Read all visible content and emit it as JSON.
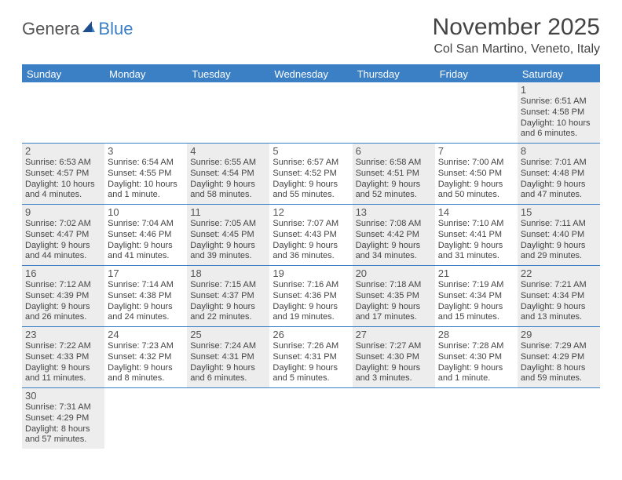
{
  "logo": {
    "general": "Genera",
    "blue": "Blue"
  },
  "title": "November 2025",
  "location": "Col San Martino, Veneto, Italy",
  "colors": {
    "header_bg": "#3b7fc4",
    "alt_bg": "#ededed",
    "text": "#444444"
  },
  "day_names": [
    "Sunday",
    "Monday",
    "Tuesday",
    "Wednesday",
    "Thursday",
    "Friday",
    "Saturday"
  ],
  "weeks": [
    [
      null,
      null,
      null,
      null,
      null,
      null,
      {
        "d": "1",
        "sr": "Sunrise: 6:51 AM",
        "ss": "Sunset: 4:58 PM",
        "dl1": "Daylight: 10 hours",
        "dl2": "and 6 minutes."
      }
    ],
    [
      {
        "d": "2",
        "sr": "Sunrise: 6:53 AM",
        "ss": "Sunset: 4:57 PM",
        "dl1": "Daylight: 10 hours",
        "dl2": "and 4 minutes."
      },
      {
        "d": "3",
        "sr": "Sunrise: 6:54 AM",
        "ss": "Sunset: 4:55 PM",
        "dl1": "Daylight: 10 hours",
        "dl2": "and 1 minute."
      },
      {
        "d": "4",
        "sr": "Sunrise: 6:55 AM",
        "ss": "Sunset: 4:54 PM",
        "dl1": "Daylight: 9 hours",
        "dl2": "and 58 minutes."
      },
      {
        "d": "5",
        "sr": "Sunrise: 6:57 AM",
        "ss": "Sunset: 4:52 PM",
        "dl1": "Daylight: 9 hours",
        "dl2": "and 55 minutes."
      },
      {
        "d": "6",
        "sr": "Sunrise: 6:58 AM",
        "ss": "Sunset: 4:51 PM",
        "dl1": "Daylight: 9 hours",
        "dl2": "and 52 minutes."
      },
      {
        "d": "7",
        "sr": "Sunrise: 7:00 AM",
        "ss": "Sunset: 4:50 PM",
        "dl1": "Daylight: 9 hours",
        "dl2": "and 50 minutes."
      },
      {
        "d": "8",
        "sr": "Sunrise: 7:01 AM",
        "ss": "Sunset: 4:48 PM",
        "dl1": "Daylight: 9 hours",
        "dl2": "and 47 minutes."
      }
    ],
    [
      {
        "d": "9",
        "sr": "Sunrise: 7:02 AM",
        "ss": "Sunset: 4:47 PM",
        "dl1": "Daylight: 9 hours",
        "dl2": "and 44 minutes."
      },
      {
        "d": "10",
        "sr": "Sunrise: 7:04 AM",
        "ss": "Sunset: 4:46 PM",
        "dl1": "Daylight: 9 hours",
        "dl2": "and 41 minutes."
      },
      {
        "d": "11",
        "sr": "Sunrise: 7:05 AM",
        "ss": "Sunset: 4:45 PM",
        "dl1": "Daylight: 9 hours",
        "dl2": "and 39 minutes."
      },
      {
        "d": "12",
        "sr": "Sunrise: 7:07 AM",
        "ss": "Sunset: 4:43 PM",
        "dl1": "Daylight: 9 hours",
        "dl2": "and 36 minutes."
      },
      {
        "d": "13",
        "sr": "Sunrise: 7:08 AM",
        "ss": "Sunset: 4:42 PM",
        "dl1": "Daylight: 9 hours",
        "dl2": "and 34 minutes."
      },
      {
        "d": "14",
        "sr": "Sunrise: 7:10 AM",
        "ss": "Sunset: 4:41 PM",
        "dl1": "Daylight: 9 hours",
        "dl2": "and 31 minutes."
      },
      {
        "d": "15",
        "sr": "Sunrise: 7:11 AM",
        "ss": "Sunset: 4:40 PM",
        "dl1": "Daylight: 9 hours",
        "dl2": "and 29 minutes."
      }
    ],
    [
      {
        "d": "16",
        "sr": "Sunrise: 7:12 AM",
        "ss": "Sunset: 4:39 PM",
        "dl1": "Daylight: 9 hours",
        "dl2": "and 26 minutes."
      },
      {
        "d": "17",
        "sr": "Sunrise: 7:14 AM",
        "ss": "Sunset: 4:38 PM",
        "dl1": "Daylight: 9 hours",
        "dl2": "and 24 minutes."
      },
      {
        "d": "18",
        "sr": "Sunrise: 7:15 AM",
        "ss": "Sunset: 4:37 PM",
        "dl1": "Daylight: 9 hours",
        "dl2": "and 22 minutes."
      },
      {
        "d": "19",
        "sr": "Sunrise: 7:16 AM",
        "ss": "Sunset: 4:36 PM",
        "dl1": "Daylight: 9 hours",
        "dl2": "and 19 minutes."
      },
      {
        "d": "20",
        "sr": "Sunrise: 7:18 AM",
        "ss": "Sunset: 4:35 PM",
        "dl1": "Daylight: 9 hours",
        "dl2": "and 17 minutes."
      },
      {
        "d": "21",
        "sr": "Sunrise: 7:19 AM",
        "ss": "Sunset: 4:34 PM",
        "dl1": "Daylight: 9 hours",
        "dl2": "and 15 minutes."
      },
      {
        "d": "22",
        "sr": "Sunrise: 7:21 AM",
        "ss": "Sunset: 4:34 PM",
        "dl1": "Daylight: 9 hours",
        "dl2": "and 13 minutes."
      }
    ],
    [
      {
        "d": "23",
        "sr": "Sunrise: 7:22 AM",
        "ss": "Sunset: 4:33 PM",
        "dl1": "Daylight: 9 hours",
        "dl2": "and 11 minutes."
      },
      {
        "d": "24",
        "sr": "Sunrise: 7:23 AM",
        "ss": "Sunset: 4:32 PM",
        "dl1": "Daylight: 9 hours",
        "dl2": "and 8 minutes."
      },
      {
        "d": "25",
        "sr": "Sunrise: 7:24 AM",
        "ss": "Sunset: 4:31 PM",
        "dl1": "Daylight: 9 hours",
        "dl2": "and 6 minutes."
      },
      {
        "d": "26",
        "sr": "Sunrise: 7:26 AM",
        "ss": "Sunset: 4:31 PM",
        "dl1": "Daylight: 9 hours",
        "dl2": "and 5 minutes."
      },
      {
        "d": "27",
        "sr": "Sunrise: 7:27 AM",
        "ss": "Sunset: 4:30 PM",
        "dl1": "Daylight: 9 hours",
        "dl2": "and 3 minutes."
      },
      {
        "d": "28",
        "sr": "Sunrise: 7:28 AM",
        "ss": "Sunset: 4:30 PM",
        "dl1": "Daylight: 9 hours",
        "dl2": "and 1 minute."
      },
      {
        "d": "29",
        "sr": "Sunrise: 7:29 AM",
        "ss": "Sunset: 4:29 PM",
        "dl1": "Daylight: 8 hours",
        "dl2": "and 59 minutes."
      }
    ],
    [
      {
        "d": "30",
        "sr": "Sunrise: 7:31 AM",
        "ss": "Sunset: 4:29 PM",
        "dl1": "Daylight: 8 hours",
        "dl2": "and 57 minutes."
      },
      null,
      null,
      null,
      null,
      null,
      null
    ]
  ]
}
